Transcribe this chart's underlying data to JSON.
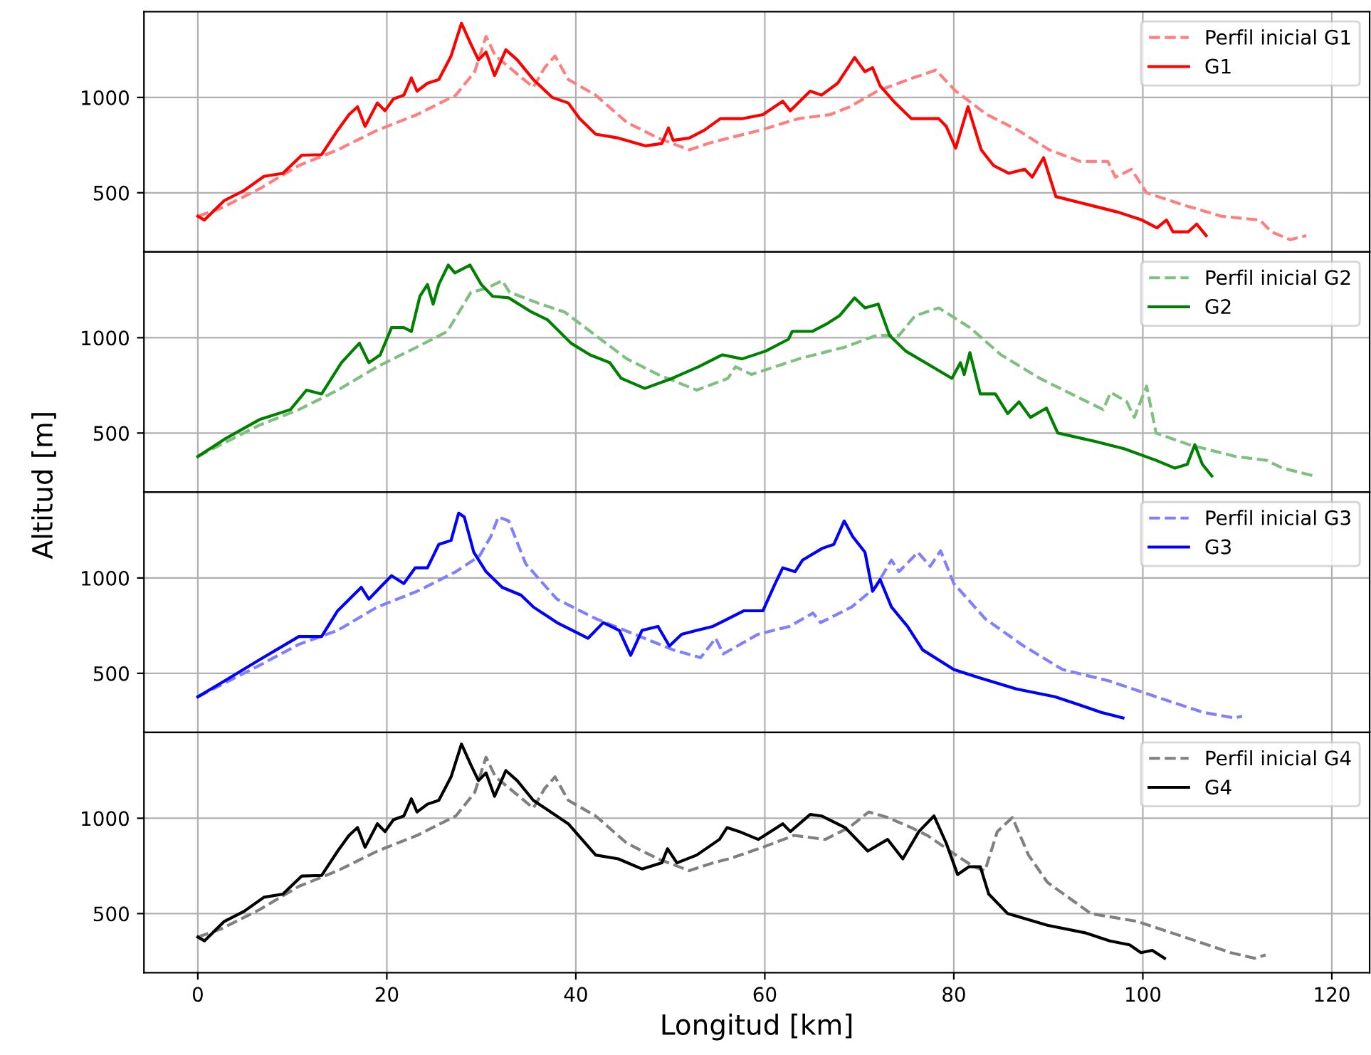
{
  "chart_data": [
    {
      "type": "line",
      "xlim": [
        -5.7,
        124
      ],
      "xticks": [
        0,
        20,
        40,
        60,
        80,
        100,
        120
      ],
      "ylim": [
        190,
        1450
      ],
      "yticks": [
        500,
        1000
      ],
      "grid": true,
      "legend": "top right",
      "tick_labels": "y",
      "series": [
        {
          "name": "Perfil inicial G1",
          "color": "#ff7f7f",
          "line_style": "dashed",
          "x": [
            0,
            2.4,
            6.5,
            10.7,
            14.8,
            19,
            23.2,
            27.3,
            29.3,
            30.5,
            31.5,
            33,
            35.5,
            36.7,
            37.8,
            39.2,
            42.1,
            45.4,
            48.7,
            52,
            54.5,
            56.2,
            59.5,
            63.6,
            66.9,
            69,
            71.9,
            75.2,
            78.1,
            80.2,
            83.5,
            86.8,
            90.1,
            93.4,
            96.3,
            97.1,
            98.8,
            100.4,
            104.1,
            108.3,
            112.4,
            113.6,
            115.6,
            117.3
          ],
          "values": [
            377,
            418,
            520,
            643,
            725,
            828,
            910,
            1012,
            1135,
            1320,
            1217,
            1156,
            1053,
            1156,
            1217,
            1094,
            1012,
            869,
            787,
            725,
            766,
            787,
            828,
            889,
            910,
            951,
            1033,
            1094,
            1143,
            1033,
            910,
            828,
            725,
            664,
            664,
            582,
            623,
            500,
            439,
            377,
            357,
            295,
            254,
            275
          ]
        },
        {
          "name": "G1",
          "color": "#ff0000",
          "line_style": "solid",
          "x": [
            0,
            0.7,
            2.8,
            4.9,
            7,
            9,
            11,
            13.1,
            14.8,
            16,
            16.9,
            17.7,
            19,
            19.8,
            20.7,
            21.8,
            22.6,
            23.2,
            24.3,
            25.5,
            26.8,
            27.9,
            28.9,
            29.7,
            30.5,
            31.4,
            32.6,
            33.8,
            35.5,
            37.5,
            39.2,
            40.4,
            42.1,
            44.5,
            47.4,
            49.1,
            49.8,
            50.3,
            52,
            53.6,
            55.3,
            57.7,
            59.8,
            61.9,
            62.7,
            64.8,
            66,
            67.7,
            69.5,
            70.6,
            71.4,
            72.2,
            73.8,
            75.5,
            78.4,
            79.2,
            80.2,
            81.5,
            82.9,
            84.2,
            85.8,
            87.5,
            88.3,
            89.5,
            90.8,
            94.1,
            97.4,
            99.9,
            101.5,
            102.5,
            103.2,
            104.8,
            105.7,
            106.7
          ],
          "values": [
            377,
            357,
            459,
            512,
            586,
            602,
            697,
            700,
            828,
            910,
            951,
            848,
            971,
            930,
            992,
            1012,
            1102,
            1033,
            1074,
            1094,
            1217,
            1389,
            1279,
            1197,
            1238,
            1115,
            1250,
            1197,
            1094,
            1000,
            971,
            889,
            807,
            787,
            746,
            758,
            840,
            775,
            787,
            828,
            889,
            889,
            910,
            980,
            930,
            1033,
            1012,
            1074,
            1209,
            1135,
            1156,
            1061,
            971,
            889,
            889,
            848,
            734,
            951,
            725,
            643,
            602,
            623,
            582,
            684,
            480,
            439,
            398,
            357,
            316,
            357,
            295,
            295,
            336,
            275
          ]
        }
      ]
    },
    {
      "type": "line",
      "ylabel": "Altitud [m]",
      "xlim": [
        -5.7,
        124
      ],
      "xticks": [
        0,
        20,
        40,
        60,
        80,
        100,
        120
      ],
      "ylim": [
        190,
        1450
      ],
      "yticks": [
        500,
        1000
      ],
      "grid": true,
      "legend": "top right",
      "tick_labels": "y",
      "series": [
        {
          "name": "Perfil inicial G2",
          "color": "#7fbf7f",
          "line_style": "dashed",
          "x": [
            0,
            6.5,
            10.7,
            14.8,
            19,
            23.2,
            26.4,
            28.9,
            30.5,
            32.2,
            33,
            36.3,
            38.8,
            42.1,
            45.4,
            48.7,
            52.8,
            56.1,
            56.9,
            58.6,
            63.6,
            68.5,
            71.8,
            74.2,
            75.9,
            78.4,
            81.7,
            85,
            89.1,
            93.3,
            95.8,
            96.6,
            98.3,
            99.1,
            100.4,
            101.4,
            104.9,
            109.8,
            113.1,
            114.8,
            118.1
          ],
          "values": [
            377,
            541,
            623,
            725,
            848,
            951,
            1033,
            1238,
            1258,
            1299,
            1238,
            1176,
            1135,
            1012,
            889,
            807,
            725,
            787,
            848,
            807,
            889,
            951,
            1012,
            1012,
            1115,
            1156,
            1053,
            910,
            787,
            684,
            623,
            713,
            664,
            582,
            746,
            500,
            439,
            377,
            357,
            316,
            275
          ]
        },
        {
          "name": "G2",
          "color": "#008000",
          "line_style": "solid",
          "x": [
            0,
            2.8,
            6.5,
            9.8,
            11.5,
            13.1,
            15.2,
            17.1,
            18.1,
            19.3,
            20.5,
            21.8,
            22.6,
            23.5,
            24.3,
            24.9,
            25.5,
            26.5,
            27.2,
            28.8,
            30,
            31.2,
            32.9,
            35.3,
            37,
            39.5,
            41.5,
            43.6,
            44.8,
            47.3,
            50.2,
            53,
            55.5,
            57.6,
            60.1,
            62.5,
            62.9,
            65,
            66.6,
            67.9,
            69.5,
            70.6,
            72,
            73.2,
            74.9,
            79.8,
            80.7,
            81.1,
            81.7,
            82.8,
            84.4,
            85.7,
            86.9,
            88.1,
            89.8,
            91,
            94.7,
            98,
            101.4,
            103.4,
            104.7,
            105.5,
            106.3,
            107.3
          ],
          "values": [
            377,
            467,
            570,
            623,
            725,
            705,
            869,
            971,
            869,
            910,
            1053,
            1053,
            1033,
            1217,
            1279,
            1176,
            1279,
            1381,
            1340,
            1381,
            1279,
            1217,
            1209,
            1135,
            1094,
            971,
            910,
            869,
            787,
            734,
            787,
            848,
            910,
            889,
            930,
            992,
            1033,
            1033,
            1074,
            1115,
            1209,
            1156,
            1176,
            1012,
            930,
            787,
            869,
            807,
            922,
            705,
            705,
            602,
            664,
            582,
            631,
            500,
            459,
            418,
            357,
            316,
            336,
            439,
            336,
            275
          ]
        }
      ]
    },
    {
      "type": "line",
      "xlim": [
        -5.7,
        124
      ],
      "xticks": [
        0,
        20,
        40,
        60,
        80,
        100,
        120
      ],
      "ylim": [
        190,
        1450
      ],
      "yticks": [
        500,
        1000
      ],
      "grid": true,
      "legend": "top right",
      "tick_labels": "y",
      "series": [
        {
          "name": "Perfil inicial G3",
          "color": "#7f7fff",
          "line_style": "dashed",
          "x": [
            0,
            6.5,
            10.7,
            14.8,
            19,
            23.2,
            27.3,
            29.8,
            31,
            31.8,
            32.9,
            34.7,
            38,
            42.1,
            46.2,
            50.3,
            53.2,
            54.8,
            55.6,
            59.3,
            62.6,
            65.1,
            65.9,
            69.2,
            71.7,
            73.4,
            74.2,
            76.2,
            77.5,
            78.6,
            80,
            83.3,
            87.4,
            91.5,
            96.5,
            101.4,
            106.4,
            109.7,
            110.5
          ],
          "values": [
            377,
            541,
            652,
            725,
            848,
            930,
            1033,
            1115,
            1217,
            1320,
            1299,
            1074,
            889,
            787,
            705,
            623,
            582,
            684,
            602,
            705,
            746,
            816,
            766,
            848,
            951,
            1094,
            1033,
            1135,
            1061,
            1143,
            971,
            787,
            643,
            520,
            459,
            377,
            295,
            266,
            275
          ]
        },
        {
          "name": "G3",
          "color": "#0000ff",
          "line_style": "solid",
          "x": [
            0,
            2.8,
            6.5,
            10.7,
            13.1,
            14.8,
            17.3,
            18.1,
            19.3,
            20.5,
            21.8,
            23,
            24.3,
            25.5,
            26.8,
            27.6,
            28.2,
            29.2,
            30.5,
            32.2,
            34.2,
            35.5,
            38,
            41.3,
            42.9,
            44.6,
            45.8,
            47,
            48.7,
            49.9,
            51.2,
            52.8,
            54.5,
            57.8,
            59.8,
            61.1,
            61.9,
            63.2,
            64,
            66.1,
            67.3,
            68.4,
            69.3,
            70.6,
            71.4,
            72.2,
            73.4,
            75.1,
            76.7,
            80,
            82.5,
            86.6,
            90.7,
            93.2,
            95.6,
            97.9
          ],
          "values": [
            377,
            459,
            570,
            693,
            693,
            828,
            951,
            889,
            951,
            1012,
            971,
            1053,
            1053,
            1176,
            1197,
            1340,
            1320,
            1135,
            1033,
            951,
            910,
            848,
            766,
            684,
            766,
            725,
            594,
            725,
            746,
            643,
            705,
            725,
            746,
            828,
            828,
            971,
            1053,
            1033,
            1094,
            1156,
            1176,
            1299,
            1217,
            1135,
            930,
            992,
            848,
            746,
            623,
            520,
            480,
            418,
            377,
            336,
            295,
            266
          ]
        }
      ]
    },
    {
      "type": "line",
      "xlabel": "Longitud [km]",
      "xlim": [
        -5.7,
        124
      ],
      "xticks": [
        0,
        20,
        40,
        60,
        80,
        100,
        120
      ],
      "ylim": [
        190,
        1450
      ],
      "yticks": [
        500,
        1000
      ],
      "grid": true,
      "legend": "top right",
      "series": [
        {
          "name": "Perfil inicial G4",
          "color": "#808080",
          "line_style": "dashed",
          "x": [
            0,
            2.4,
            6.5,
            10.7,
            14.8,
            19,
            23.2,
            27.3,
            29.3,
            30.5,
            31.5,
            33,
            35.5,
            36.7,
            37.8,
            39.2,
            42.1,
            45.4,
            48.7,
            52,
            54.5,
            56.2,
            59.8,
            63.1,
            66.4,
            68.9,
            71,
            73,
            75.5,
            77.2,
            79.6,
            82.1,
            83.3,
            84.6,
            86.2,
            87.9,
            89.9,
            94.5,
            99.4,
            104.4,
            109.3,
            111.8,
            113
          ],
          "values": [
            377,
            418,
            520,
            643,
            725,
            828,
            910,
            1012,
            1135,
            1320,
            1217,
            1156,
            1053,
            1156,
            1217,
            1094,
            1012,
            869,
            787,
            725,
            766,
            787,
            848,
            910,
            889,
            951,
            1033,
            1004,
            951,
            910,
            828,
            746,
            725,
            930,
            1004,
            807,
            664,
            500,
            459,
            377,
            295,
            266,
            283
          ]
        },
        {
          "name": "G4",
          "color": "#000000",
          "line_style": "solid",
          "x": [
            0,
            0.7,
            2.8,
            4.9,
            7,
            9,
            11,
            13.1,
            14.8,
            16,
            16.9,
            17.7,
            19,
            19.8,
            20.7,
            21.8,
            22.6,
            23.2,
            24.3,
            25.5,
            26.8,
            27.9,
            28.9,
            29.7,
            30.5,
            31.4,
            32.6,
            33.8,
            35.5,
            39.2,
            42.1,
            44.5,
            47,
            49.1,
            49.7,
            50.7,
            52.8,
            55.2,
            56,
            57.3,
            59.3,
            61.9,
            62.7,
            64.8,
            66,
            68.5,
            70.9,
            73,
            74.6,
            76.3,
            77.9,
            79.2,
            80.4,
            81.6,
            82.8,
            83.7,
            85.7,
            89.9,
            94,
            96.5,
            98.6,
            99.8,
            101,
            102.3
          ],
          "values": [
            377,
            357,
            459,
            512,
            586,
            602,
            697,
            700,
            828,
            910,
            951,
            848,
            971,
            930,
            992,
            1012,
            1102,
            1033,
            1074,
            1094,
            1217,
            1389,
            1279,
            1197,
            1238,
            1115,
            1250,
            1197,
            1094,
            971,
            807,
            787,
            734,
            766,
            840,
            766,
            807,
            889,
            951,
            930,
            889,
            971,
            930,
            1020,
            1012,
            951,
            828,
            889,
            787,
            930,
            1012,
            869,
            705,
            746,
            746,
            602,
            500,
            439,
            398,
            357,
            336,
            295,
            307,
            266
          ]
        }
      ]
    }
  ]
}
